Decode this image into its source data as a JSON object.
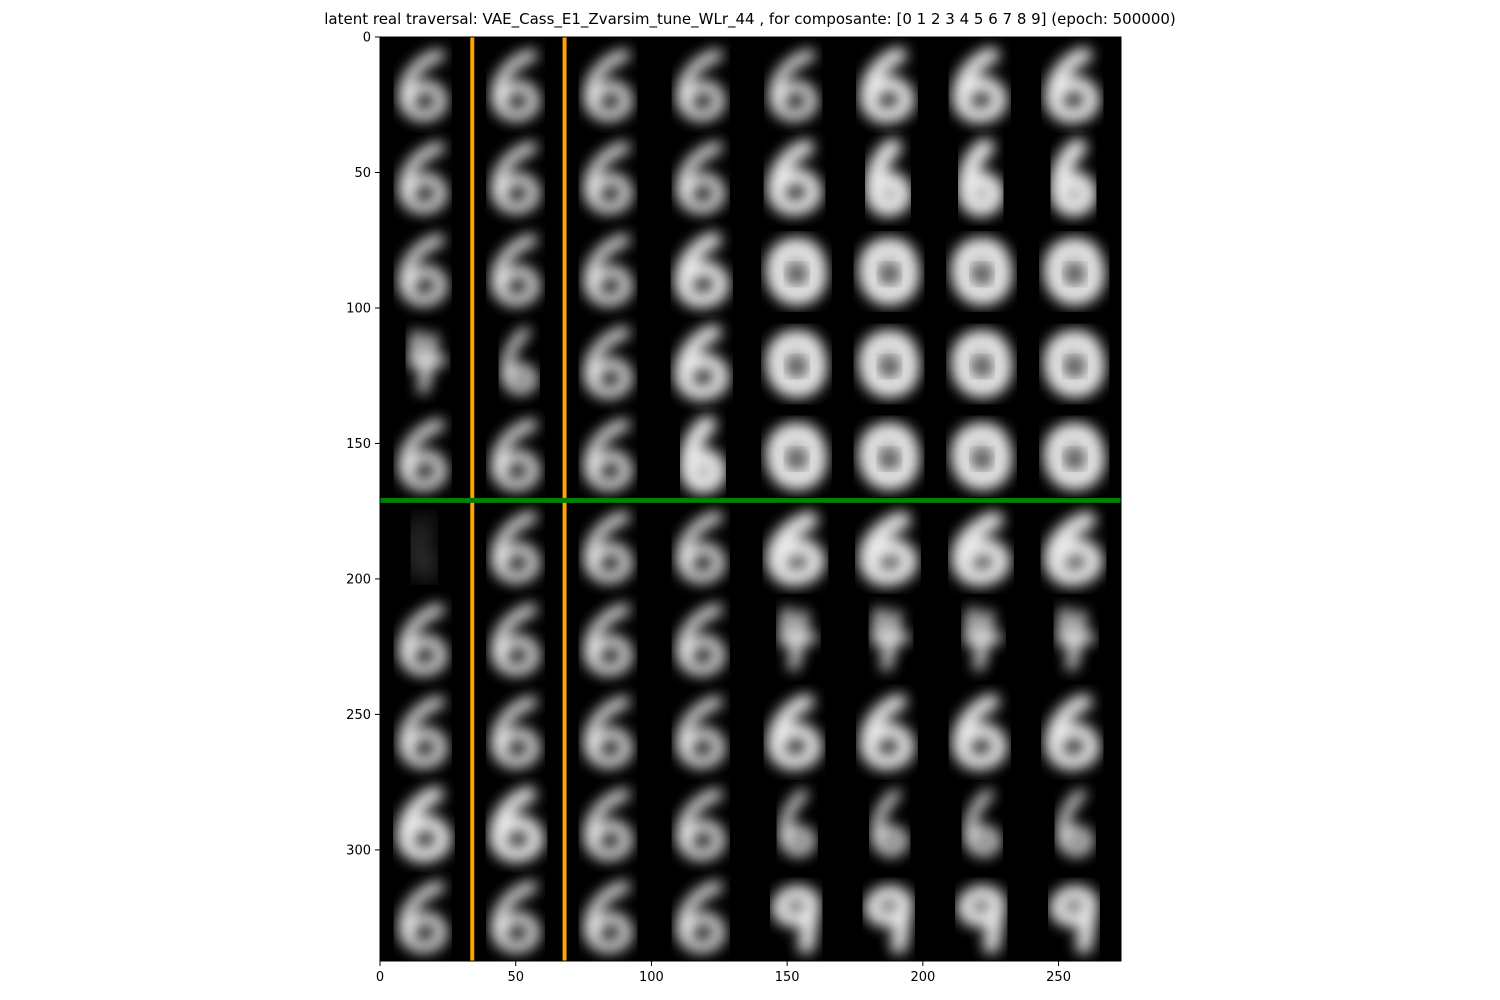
{
  "title": "latent real traversal: VAE_Cass_E1_Zvarsim_tune_WLr_44 , for composante: [0 1 2 3 4 5 6 7 8 9] (epoch: 500000)",
  "image": {
    "content": "digit-traversal-grid",
    "rows": 10,
    "cols": 8,
    "background": "#000000",
    "glyph_color": "#ffffff"
  },
  "axes": {
    "x_ticks": [
      "0",
      "50",
      "100",
      "150",
      "200",
      "250"
    ],
    "y_ticks": [
      "0",
      "50",
      "100",
      "150",
      "200",
      "250",
      "300"
    ],
    "x_tick_values": [
      0,
      50,
      100,
      150,
      200,
      250
    ],
    "y_tick_values": [
      0,
      50,
      100,
      150,
      200,
      250,
      300
    ],
    "x_range": [
      0,
      273
    ],
    "y_range": [
      0,
      341
    ]
  },
  "overlays": {
    "vertical_lines": {
      "color": "#ffa500",
      "x_values": [
        34,
        68
      ]
    },
    "horizontal_line": {
      "color": "#007f00",
      "y_value": 171
    }
  },
  "cells": [
    [
      "6s",
      "6s",
      "6s",
      "6s",
      "6s",
      "6b",
      "6b",
      "6b"
    ],
    [
      "6s",
      "6s",
      "6s",
      "6s",
      "6b",
      "6h",
      "6h",
      "6h"
    ],
    [
      "6s",
      "6s",
      "6s",
      "6b",
      "blob",
      "blob",
      "blob",
      "blob"
    ],
    [
      "4",
      "6n",
      "6s",
      "6b",
      "blob",
      "blob",
      "blob",
      "blob"
    ],
    [
      "6s",
      "6s",
      "6s",
      "6h",
      "blob",
      "blob",
      "blob",
      "blob"
    ],
    [
      "faint",
      "6s",
      "6s",
      "6s",
      "6o",
      "6o",
      "6o",
      "6o"
    ],
    [
      "6s",
      "6s",
      "6s",
      "6s",
      "4",
      "4",
      "4",
      "4"
    ],
    [
      "6s",
      "6s",
      "6s",
      "6s",
      "6b",
      "6b",
      "6b",
      "6b"
    ],
    [
      "6b",
      "6b",
      "6s",
      "6s",
      "6n",
      "6n",
      "6n",
      "6n"
    ],
    [
      "6s",
      "6s",
      "6s",
      "6s",
      "9",
      "9",
      "9",
      "9"
    ]
  ]
}
